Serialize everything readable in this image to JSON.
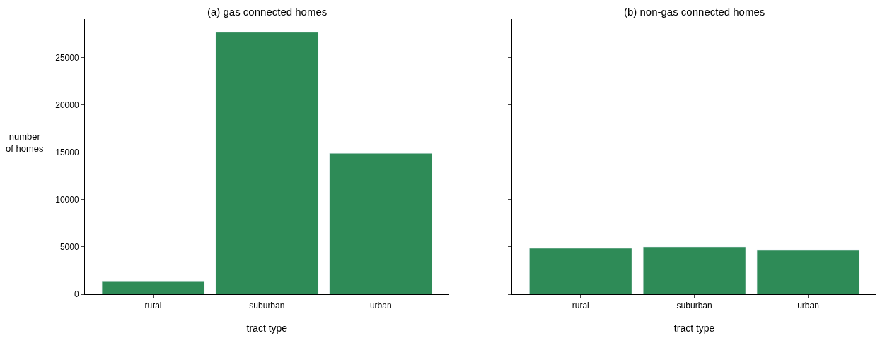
{
  "chart_data": [
    {
      "type": "bar",
      "title": "(a) gas connected homes",
      "xlabel": "tract type",
      "ylabel": "number\nof homes",
      "categories": [
        "rural",
        "suburban",
        "urban"
      ],
      "values": [
        1400,
        27700,
        14900
      ],
      "color": "#2e8b57",
      "ylim": [
        0,
        29100
      ],
      "yticks": [
        0,
        5000,
        10000,
        15000,
        20000,
        25000
      ]
    },
    {
      "type": "bar",
      "title": "(b) non-gas connected homes",
      "xlabel": "tract type",
      "categories": [
        "rural",
        "suburban",
        "urban"
      ],
      "values": [
        4850,
        5000,
        4700
      ],
      "color": "#2e8b57",
      "ylim": [
        0,
        29100
      ],
      "yticks": [
        0,
        5000,
        10000,
        15000,
        20000,
        25000
      ],
      "tick_labels": "x"
    }
  ]
}
